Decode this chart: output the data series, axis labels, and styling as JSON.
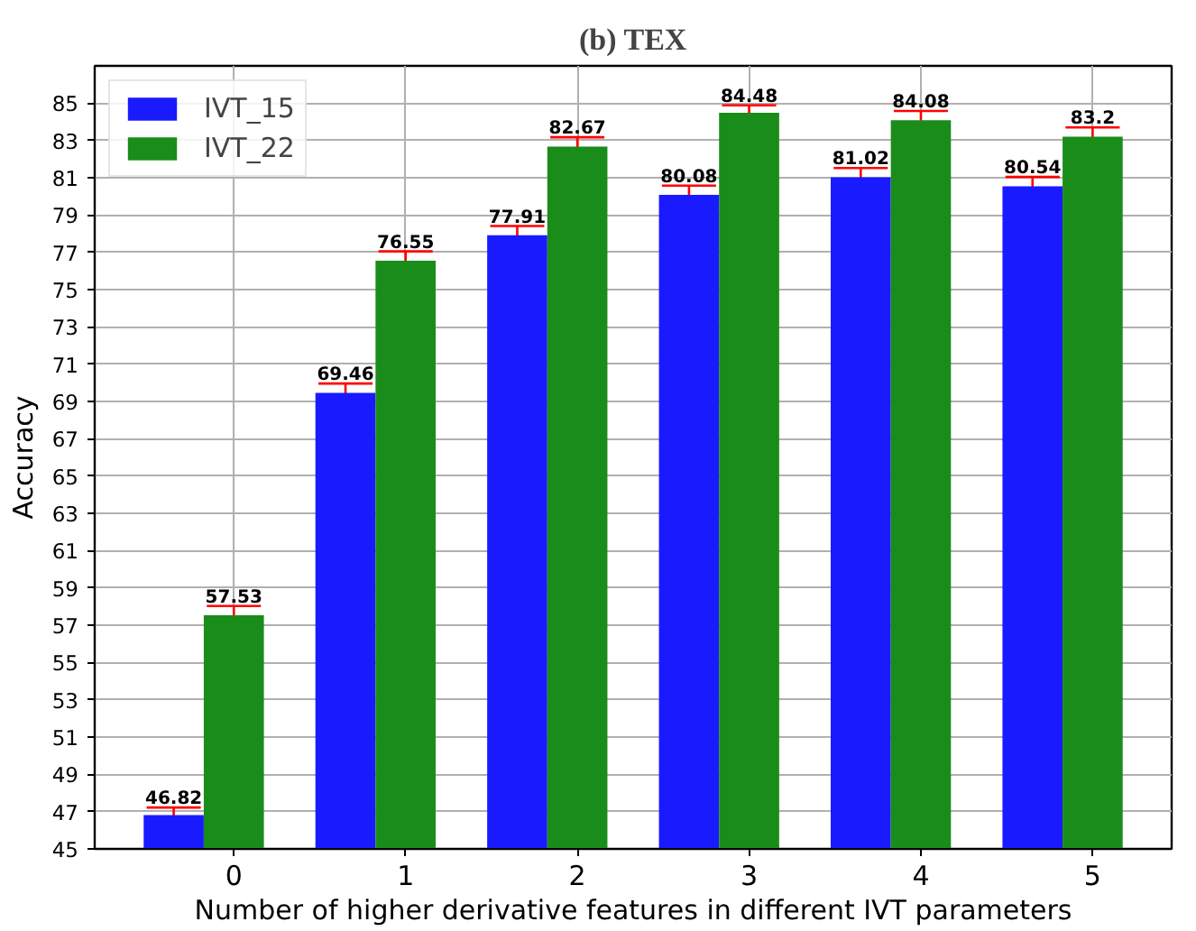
{
  "chart_data": {
    "type": "bar",
    "title": "(b) TEX",
    "xlabel": "Number of higher derivative features in different IVT parameters",
    "ylabel": "Accuracy",
    "categories": [
      "0",
      "1",
      "2",
      "3",
      "4",
      "5"
    ],
    "series": [
      {
        "name": "IVT_15",
        "color": "#1a1aff",
        "values": [
          46.82,
          69.46,
          77.91,
          80.08,
          81.02,
          80.54
        ],
        "errors": [
          0.4,
          0.5,
          0.5,
          0.5,
          0.5,
          0.5
        ]
      },
      {
        "name": "IVT_22",
        "color": "#1a8c1a",
        "values": [
          57.53,
          76.55,
          82.67,
          84.48,
          84.08,
          83.2
        ],
        "errors": [
          0.5,
          0.5,
          0.5,
          0.4,
          0.5,
          0.5
        ]
      }
    ],
    "ylim": [
      45,
      87
    ],
    "yticks": [
      45,
      47,
      49,
      51,
      53,
      55,
      57,
      59,
      61,
      63,
      65,
      67,
      69,
      71,
      73,
      75,
      77,
      79,
      81,
      83,
      85
    ],
    "grid": true,
    "legend": "top left",
    "data_labels": true
  }
}
